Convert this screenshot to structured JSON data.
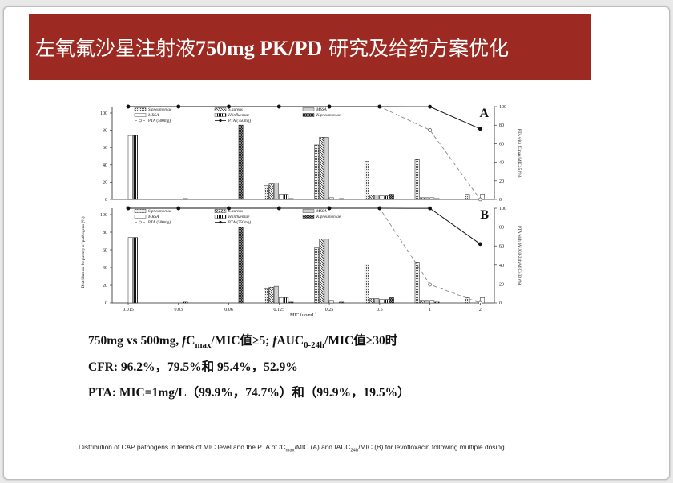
{
  "slide": {
    "title_cn_1": "左氧氟沙星注射液",
    "title_bold": "750mg PK/PD",
    "title_cn_2": " 研究及给药方案优化",
    "line1_a": "750mg vs 500mg, ",
    "line1_f1": "f",
    "line1_c": "C",
    "line1_max": "max",
    "line1_b": "/MIC值≥5; ",
    "line1_f2": "f",
    "line1_auc": "AUC",
    "line1_sub": "0-24h",
    "line1_c2": "/MIC值≥30时",
    "line2": "CFR:   96.2%，79.5%和 95.4%，52.9%",
    "line3": "PTA:   MIC=1mg/L（99.9%，74.7%）和（99.9%，19.5%）",
    "caption_a": "Distribution of CAP pathogens in terms of MIC level and the PTA of ",
    "caption_f1": "f",
    "caption_c": "C",
    "caption_max": "max",
    "caption_b": "/MIC (A) and ",
    "caption_f2": "f",
    "caption_auc": "AUC",
    "caption_24h": "24h",
    "caption_c2": "/MIC (B) for levofloxacin following multiple dosing"
  },
  "chart_data": {
    "type": "bar",
    "xlabel": "MIC  (μg/mL)",
    "ylabel": "Distribution frequency of pathogens (%)",
    "y2label_a": "PTA with fCmax/MIC≥5 (%)",
    "y2label_b": "PTA with fAUC0-24h/MIC≥30 (%)",
    "categories": [
      "0.015",
      "0.03",
      "0.06",
      "0.125",
      "0.25",
      "0.5",
      "1",
      "2"
    ],
    "ylim": [
      0,
      100
    ],
    "y_ticks": [
      "0",
      "20",
      "40",
      "60",
      "80",
      "100"
    ],
    "y2lim": [
      0,
      100
    ],
    "y2_ticks": [
      "0",
      "20",
      "40",
      "60",
      "80",
      "100"
    ],
    "legend": [
      "S.pneumoniae",
      "S.aureus",
      "MSSA",
      "MRSA",
      "H.influenzae",
      "K.pneumoniae",
      "PTA (500mg)",
      "PTA (750mg)"
    ],
    "series": [
      {
        "name": "S.pneumoniae",
        "values": [
          0,
          0,
          0,
          16,
          63,
          44,
          46,
          6
        ]
      },
      {
        "name": "S.aureus",
        "values": [
          0,
          0,
          0,
          18,
          72,
          5,
          2,
          0
        ]
      },
      {
        "name": "MSSA",
        "values": [
          0,
          0,
          0,
          19,
          72,
          5,
          2,
          0
        ]
      },
      {
        "name": "MRSA",
        "values": [
          74,
          0,
          0,
          6,
          2,
          4,
          2,
          6
        ]
      },
      {
        "name": "H.influenzae",
        "values": [
          74,
          1,
          0,
          6,
          0,
          4,
          1,
          0
        ]
      },
      {
        "name": "K.pneumoniae",
        "values": [
          0,
          0,
          86,
          1,
          1,
          6,
          0,
          0
        ]
      }
    ],
    "panels": [
      {
        "label": "A",
        "pta_500": [
          100,
          100,
          100,
          100,
          100,
          100,
          74.7,
          0
        ],
        "pta_750": [
          100,
          100,
          100,
          100,
          100,
          100,
          99.9,
          76
        ]
      },
      {
        "label": "B",
        "pta_500": [
          100,
          100,
          100,
          100,
          100,
          100,
          19.5,
          0
        ],
        "pta_750": [
          100,
          100,
          100,
          100,
          100,
          100,
          99.9,
          62
        ]
      }
    ]
  }
}
